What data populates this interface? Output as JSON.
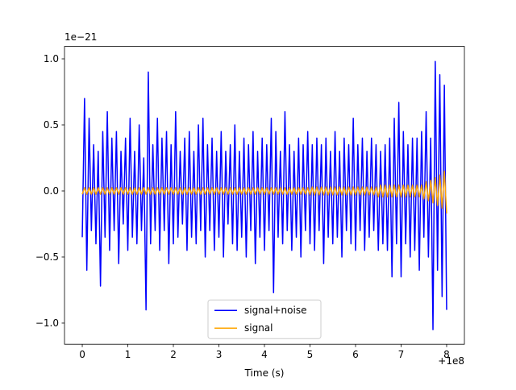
{
  "chart_data": {
    "type": "line",
    "x": [
      0,
      0.05,
      0.1,
      0.15,
      0.2,
      0.25,
      0.3,
      0.35,
      0.4,
      0.45,
      0.5,
      0.55,
      0.6,
      0.65,
      0.7,
      0.75,
      0.8,
      0.85,
      0.9,
      0.95,
      1,
      1.05,
      1.1,
      1.15,
      1.2,
      1.25,
      1.3,
      1.35,
      1.4,
      1.45,
      1.5,
      1.55,
      1.6,
      1.65,
      1.7,
      1.75,
      1.8,
      1.85,
      1.9,
      1.95,
      2,
      2.05,
      2.1,
      2.15,
      2.2,
      2.25,
      2.3,
      2.35,
      2.4,
      2.45,
      2.5,
      2.55,
      2.6,
      2.65,
      2.7,
      2.75,
      2.8,
      2.85,
      2.9,
      2.95,
      3,
      3.05,
      3.1,
      3.15,
      3.2,
      3.25,
      3.3,
      3.35,
      3.4,
      3.45,
      3.5,
      3.55,
      3.6,
      3.65,
      3.7,
      3.75,
      3.8,
      3.85,
      3.9,
      3.95,
      4,
      4.05,
      4.1,
      4.15,
      4.2,
      4.25,
      4.3,
      4.35,
      4.4,
      4.45,
      4.5,
      4.55,
      4.6,
      4.65,
      4.7,
      4.75,
      4.8,
      4.85,
      4.9,
      4.95,
      5,
      5.05,
      5.1,
      5.15,
      5.2,
      5.25,
      5.3,
      5.35,
      5.4,
      5.45,
      5.5,
      5.55,
      5.6,
      5.65,
      5.7,
      5.75,
      5.8,
      5.85,
      5.9,
      5.95,
      6,
      6.05,
      6.1,
      6.15,
      6.2,
      6.25,
      6.3,
      6.35,
      6.4,
      6.45,
      6.5,
      6.55,
      6.6,
      6.65,
      6.7,
      6.75,
      6.8,
      6.85,
      6.9,
      6.95,
      7,
      7.05,
      7.1,
      7.15,
      7.2,
      7.25,
      7.3,
      7.35,
      7.4,
      7.45,
      7.5,
      7.55,
      7.6,
      7.65,
      7.7,
      7.75,
      7.8,
      7.85,
      7.9,
      7.95,
      8
    ],
    "series": [
      {
        "name": "signal+noise",
        "color": "#0000ff",
        "values": [
          -0.35,
          0.7,
          -0.6,
          0.55,
          -0.3,
          0.35,
          -0.4,
          0.3,
          -0.72,
          0.45,
          -0.35,
          0.6,
          -0.45,
          0.4,
          -0.3,
          0.45,
          -0.55,
          0.3,
          -0.25,
          0.4,
          -0.45,
          0.55,
          -0.35,
          0.3,
          -0.4,
          0.5,
          -0.3,
          0.25,
          -0.9,
          0.9,
          -0.4,
          0.35,
          -0.3,
          0.55,
          -0.45,
          0.4,
          -0.3,
          0.45,
          -0.55,
          0.35,
          -0.4,
          0.6,
          -0.35,
          0.3,
          -0.25,
          0.4,
          -0.45,
          0.45,
          -0.35,
          0.3,
          -0.4,
          0.5,
          -0.3,
          0.55,
          -0.5,
          0.35,
          -0.3,
          0.4,
          -0.45,
          0.3,
          -0.35,
          0.45,
          -0.5,
          0.3,
          -0.25,
          0.35,
          -0.4,
          0.5,
          -0.45,
          0.3,
          -0.35,
          0.4,
          -0.5,
          0.35,
          -0.3,
          0.45,
          -0.55,
          0.3,
          -0.35,
          0.4,
          -0.45,
          0.35,
          -0.3,
          0.55,
          -0.77,
          0.45,
          -0.35,
          0.3,
          -0.4,
          0.6,
          -0.3,
          0.35,
          -0.45,
          0.3,
          -0.35,
          0.4,
          -0.5,
          0.35,
          -0.3,
          0.45,
          -0.4,
          0.35,
          -0.45,
          0.4,
          -0.3,
          0.35,
          -0.55,
          0.4,
          -0.35,
          0.3,
          -0.4,
          0.45,
          -0.35,
          0.3,
          -0.5,
          0.4,
          -0.3,
          0.35,
          -0.4,
          0.55,
          -0.45,
          0.35,
          -0.3,
          0.4,
          -0.45,
          0.3,
          -0.35,
          0.4,
          -0.3,
          0.35,
          -0.45,
          0.3,
          -0.4,
          0.35,
          -0.45,
          0.4,
          -0.65,
          0.55,
          -0.4,
          0.67,
          -0.65,
          0.45,
          -0.4,
          0.35,
          -0.5,
          0.4,
          -0.45,
          0.4,
          -0.6,
          0.45,
          -0.35,
          0.6,
          -0.5,
          0.4,
          -1.05,
          0.98,
          -0.6,
          0.88,
          -0.8,
          0.8,
          -0.9
        ]
      },
      {
        "name": "signal",
        "color": "#ffa500",
        "values": [
          -0.025,
          0.025,
          -0.025,
          0.025,
          -0.025,
          0.025,
          -0.025,
          0.025,
          -0.025,
          0.025,
          -0.025,
          0.025,
          -0.025,
          0.025,
          -0.025,
          0.025,
          -0.025,
          0.025,
          -0.025,
          0.025,
          -0.025,
          0.025,
          -0.025,
          0.025,
          -0.025,
          0.025,
          -0.025,
          0.025,
          -0.025,
          0.025,
          -0.025,
          0.025,
          -0.025,
          0.025,
          -0.025,
          0.025,
          -0.025,
          0.025,
          -0.025,
          0.025,
          -0.025,
          0.025,
          -0.025,
          0.025,
          -0.025,
          0.025,
          -0.025,
          0.025,
          -0.025,
          0.025,
          -0.025,
          0.025,
          -0.025,
          0.025,
          -0.025,
          0.025,
          -0.025,
          0.025,
          -0.025,
          0.025,
          -0.025,
          0.025,
          -0.025,
          0.025,
          -0.025,
          0.025,
          -0.025,
          0.025,
          -0.025,
          0.025,
          -0.025,
          0.025,
          -0.025,
          0.025,
          -0.025,
          0.025,
          -0.025,
          0.025,
          -0.025,
          0.025,
          -0.025,
          0.025,
          -0.025,
          0.025,
          -0.025,
          0.025,
          -0.025,
          0.025,
          -0.025,
          0.025,
          -0.025,
          0.025,
          -0.025,
          0.025,
          -0.025,
          0.025,
          -0.025,
          0.025,
          -0.025,
          0.025,
          -0.03,
          0.03,
          -0.03,
          0.03,
          -0.03,
          0.03,
          -0.03,
          0.03,
          -0.03,
          0.03,
          -0.03,
          0.03,
          -0.03,
          0.03,
          -0.03,
          0.03,
          -0.03,
          0.03,
          -0.03,
          0.03,
          -0.03,
          0.03,
          -0.03,
          0.03,
          -0.03,
          0.03,
          -0.03,
          0.03,
          -0.03,
          0.03,
          -0.045,
          0.045,
          -0.045,
          0.045,
          -0.045,
          0.045,
          -0.045,
          0.045,
          -0.045,
          0.045,
          -0.045,
          0.045,
          -0.045,
          0.045,
          -0.045,
          0.045,
          -0.045,
          0.045,
          -0.045,
          0.045,
          -0.06,
          0.07,
          -0.075,
          0.08,
          -0.09,
          0.1,
          -0.11,
          0.12,
          -0.13,
          0.15,
          -0.17
        ]
      }
    ],
    "xlabel": "Time (s)",
    "x_offset_label": "+1e8",
    "y_offset_label": "1e−21",
    "xlim": [
      -0.39,
      8.39
    ],
    "xticks": [
      0,
      1,
      2,
      3,
      4,
      5,
      6,
      7,
      8
    ],
    "ylim": [
      -1.16,
      1.094
    ],
    "yticks": [
      {
        "value": -1.0,
        "label": "−1.0"
      },
      {
        "value": -0.5,
        "label": "−0.5"
      },
      {
        "value": 0,
        "label": "0.0"
      },
      0.5,
      {
        "value": 1.0,
        "label": "1.0"
      }
    ],
    "legend": "lower center"
  }
}
